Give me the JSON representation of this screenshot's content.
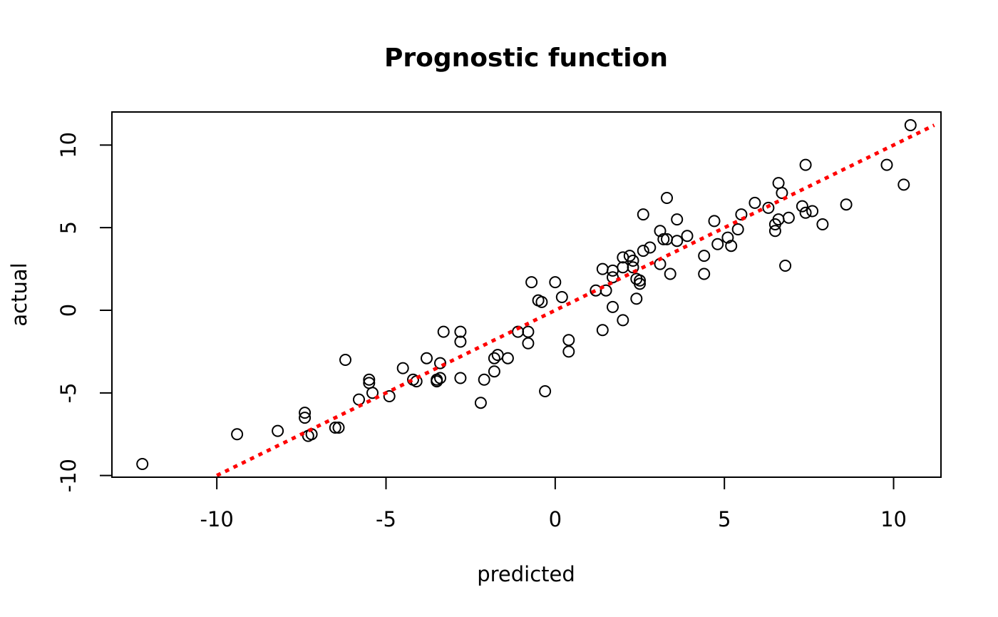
{
  "chart_data": {
    "type": "scatter",
    "title": "Prognostic function",
    "xlabel": "predicted",
    "ylabel": "actual",
    "xlim": [
      -13.1,
      11.4
    ],
    "ylim": [
      -10.1,
      12.0
    ],
    "x_ticks": [
      -10,
      -5,
      0,
      5,
      10
    ],
    "x_tick_labels": [
      "-10",
      "-5",
      "0",
      "5",
      "10"
    ],
    "y_ticks": [
      -10,
      -5,
      0,
      5,
      10
    ],
    "y_tick_labels": [
      "-10",
      "-5",
      "0",
      "5",
      "10"
    ],
    "grid": false,
    "reference_line": {
      "style": "dotted",
      "color": "#ff0000",
      "from": [
        -10,
        -10
      ],
      "to": [
        11.2,
        11.2
      ]
    },
    "point_style": {
      "shape": "open-circle",
      "color": "#000000"
    },
    "points": [
      [
        -12.2,
        -9.3
      ],
      [
        -9.4,
        -7.5
      ],
      [
        -8.2,
        -7.3
      ],
      [
        -7.4,
        -6.2
      ],
      [
        -7.4,
        -6.5
      ],
      [
        -7.3,
        -7.6
      ],
      [
        -7.2,
        -7.5
      ],
      [
        -6.5,
        -7.1
      ],
      [
        -6.4,
        -7.1
      ],
      [
        -6.2,
        -3.0
      ],
      [
        -5.8,
        -5.4
      ],
      [
        -5.5,
        -4.4
      ],
      [
        -5.5,
        -4.2
      ],
      [
        -5.4,
        -5.0
      ],
      [
        -4.9,
        -5.2
      ],
      [
        -4.5,
        -3.5
      ],
      [
        -4.2,
        -4.2
      ],
      [
        -4.1,
        -4.3
      ],
      [
        -3.8,
        -2.9
      ],
      [
        -3.5,
        -4.3
      ],
      [
        -3.5,
        -4.2
      ],
      [
        -3.4,
        -4.1
      ],
      [
        -3.4,
        -3.2
      ],
      [
        -3.3,
        -1.3
      ],
      [
        -2.8,
        -1.9
      ],
      [
        -2.8,
        -1.3
      ],
      [
        -2.8,
        -4.1
      ],
      [
        -2.2,
        -5.6
      ],
      [
        -2.1,
        -4.2
      ],
      [
        -1.8,
        -3.7
      ],
      [
        -1.8,
        -2.9
      ],
      [
        -1.7,
        -2.7
      ],
      [
        -1.4,
        -2.9
      ],
      [
        -1.1,
        -1.3
      ],
      [
        -0.8,
        -2.0
      ],
      [
        -0.8,
        -1.3
      ],
      [
        -0.7,
        1.7
      ],
      [
        -0.5,
        0.6
      ],
      [
        -0.4,
        0.5
      ],
      [
        -0.3,
        -4.9
      ],
      [
        0.0,
        1.7
      ],
      [
        0.2,
        0.8
      ],
      [
        0.4,
        -1.8
      ],
      [
        0.4,
        -2.5
      ],
      [
        1.2,
        1.2
      ],
      [
        1.4,
        -1.2
      ],
      [
        1.4,
        2.5
      ],
      [
        1.5,
        1.2
      ],
      [
        1.7,
        0.2
      ],
      [
        1.7,
        2.4
      ],
      [
        1.7,
        2.0
      ],
      [
        2.0,
        -0.6
      ],
      [
        2.0,
        2.6
      ],
      [
        2.0,
        3.2
      ],
      [
        2.2,
        3.3
      ],
      [
        2.3,
        3.0
      ],
      [
        2.3,
        2.6
      ],
      [
        2.4,
        1.9
      ],
      [
        2.4,
        0.7
      ],
      [
        2.5,
        1.6
      ],
      [
        2.5,
        1.8
      ],
      [
        2.6,
        3.6
      ],
      [
        2.6,
        5.8
      ],
      [
        2.8,
        3.8
      ],
      [
        3.1,
        2.8
      ],
      [
        3.1,
        4.8
      ],
      [
        3.2,
        4.3
      ],
      [
        3.3,
        4.3
      ],
      [
        3.3,
        6.8
      ],
      [
        3.4,
        2.2
      ],
      [
        3.6,
        5.5
      ],
      [
        3.6,
        4.2
      ],
      [
        3.9,
        4.5
      ],
      [
        4.4,
        2.2
      ],
      [
        4.4,
        3.3
      ],
      [
        4.7,
        5.4
      ],
      [
        4.8,
        4.0
      ],
      [
        5.1,
        4.4
      ],
      [
        5.2,
        3.9
      ],
      [
        5.4,
        4.9
      ],
      [
        5.5,
        5.8
      ],
      [
        5.9,
        6.5
      ],
      [
        6.3,
        6.2
      ],
      [
        6.5,
        4.8
      ],
      [
        6.5,
        5.2
      ],
      [
        6.6,
        5.5
      ],
      [
        6.6,
        7.7
      ],
      [
        6.7,
        7.1
      ],
      [
        6.8,
        2.7
      ],
      [
        6.9,
        5.6
      ],
      [
        7.3,
        6.3
      ],
      [
        7.4,
        5.9
      ],
      [
        7.4,
        8.8
      ],
      [
        7.6,
        6.0
      ],
      [
        7.9,
        5.2
      ],
      [
        8.6,
        6.4
      ],
      [
        9.8,
        8.8
      ],
      [
        10.3,
        7.6
      ],
      [
        10.5,
        11.2
      ]
    ]
  }
}
